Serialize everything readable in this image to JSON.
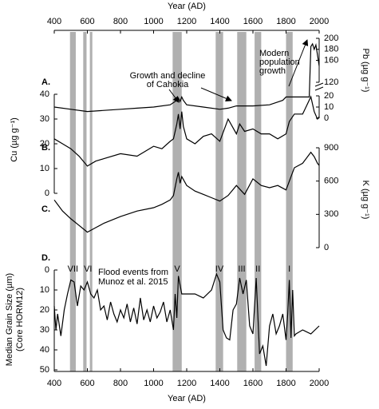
{
  "chart_data": {
    "type": "line",
    "x_label_top": "Year (AD)",
    "x_label_bottom": "Year (AD)",
    "xlim": [
      400,
      2000
    ],
    "xticks": [
      400,
      600,
      800,
      1000,
      1200,
      1400,
      1600,
      1800,
      2000
    ],
    "band_color": "#b0b0b0",
    "flood_events": [
      {
        "label": "VII",
        "bands": [
          [
            495,
            530
          ]
        ]
      },
      {
        "label": "VI",
        "bands": [
          [
            575,
            595
          ],
          [
            615,
            630
          ]
        ]
      },
      {
        "label": "V",
        "bands": [
          [
            1115,
            1170
          ]
        ]
      },
      {
        "label": "IV",
        "bands": [
          [
            1375,
            1420
          ]
        ]
      },
      {
        "label": "III",
        "bands": [
          [
            1505,
            1560
          ]
        ]
      },
      {
        "label": "II",
        "bands": [
          [
            1610,
            1650
          ]
        ]
      },
      {
        "label": "I",
        "bands": [
          [
            1800,
            1840
          ]
        ]
      }
    ],
    "annotations": {
      "cahokia": [
        "Growth and decline",
        "of Cahokia"
      ],
      "population": [
        "Modern",
        "population",
        "growth"
      ],
      "flood": [
        "Flood events from",
        "Munoz et al. 2015"
      ]
    },
    "panels": [
      {
        "label": "A.",
        "axis_label": "Pb (µg g⁻¹)",
        "side": "right",
        "color": "#000000",
        "segments": [
          {
            "ylim": [
              0,
              20
            ],
            "yticks": [
              0,
              10,
              20
            ]
          },
          {
            "ylim": [
              120,
              200
            ],
            "yticks": [
              120,
              160,
              180,
              200
            ]
          }
        ],
        "x": [
          400,
          500,
          600,
          700,
          800,
          900,
          1000,
          1100,
          1140,
          1150,
          1160,
          1170,
          1180,
          1200,
          1300,
          1400,
          1450,
          1500,
          1600,
          1700,
          1780,
          1800,
          1940,
          1950,
          1960,
          1970,
          1980,
          1990,
          2000
        ],
        "values": [
          10,
          8,
          6,
          7,
          8,
          9,
          10,
          12,
          16,
          18,
          15,
          19,
          16,
          12,
          10,
          8,
          9,
          11,
          11,
          12,
          16,
          19,
          19,
          185,
          190,
          180,
          188,
          170,
          150
        ]
      },
      {
        "label": "B.",
        "axis_label": "Cu (µg g⁻¹)",
        "side": "left",
        "color": "#000000",
        "segments": [
          {
            "ylim": [
              0,
              40
            ],
            "yticks": [
              0,
              10,
              20,
              30,
              40
            ]
          }
        ],
        "x": [
          400,
          450,
          500,
          550,
          600,
          650,
          700,
          800,
          900,
          1000,
          1050,
          1100,
          1120,
          1140,
          1150,
          1160,
          1170,
          1180,
          1200,
          1250,
          1300,
          1350,
          1400,
          1450,
          1500,
          1520,
          1550,
          1600,
          1650,
          1700,
          1750,
          1800,
          1820,
          1850,
          1900,
          1950,
          1970,
          1990,
          2000
        ],
        "values": [
          22,
          20,
          18,
          15,
          11,
          13,
          14,
          16,
          15,
          19,
          18,
          21,
          22,
          28,
          32,
          26,
          33,
          27,
          22,
          20,
          23,
          24,
          21,
          30,
          24,
          28,
          25,
          26,
          24,
          24,
          22,
          24,
          29,
          32,
          32,
          39,
          33,
          30,
          31
        ]
      },
      {
        "label": "C.",
        "axis_label": "K (µg g⁻¹)",
        "side": "right",
        "color": "#000000",
        "segments": [
          {
            "ylim": [
              0,
              900
            ],
            "yticks": [
              0,
              300,
              600,
              900
            ]
          }
        ],
        "x": [
          400,
          450,
          500,
          550,
          600,
          650,
          700,
          800,
          900,
          1000,
          1050,
          1100,
          1120,
          1140,
          1150,
          1160,
          1170,
          1200,
          1250,
          1300,
          1350,
          1400,
          1450,
          1500,
          1550,
          1600,
          1650,
          1700,
          1750,
          1800,
          1850,
          1900,
          1950,
          1970,
          1990,
          2000
        ],
        "values": [
          430,
          330,
          260,
          200,
          140,
          180,
          220,
          280,
          330,
          360,
          390,
          430,
          470,
          620,
          680,
          580,
          640,
          560,
          510,
          480,
          450,
          420,
          470,
          560,
          480,
          620,
          560,
          540,
          560,
          520,
          720,
          760,
          860,
          820,
          760,
          740
        ]
      },
      {
        "label": "D.",
        "axis_label": [
          "Median Grain Size (µm)",
          "(Core HORM12)"
        ],
        "side": "left",
        "inverted": true,
        "color": "#000000",
        "segments": [
          {
            "ylim": [
              0,
              50
            ],
            "yticks": [
              0,
              10,
              20,
              30,
              40,
              50
            ]
          }
        ],
        "x": [
          400,
          410,
          420,
          440,
          460,
          480,
          500,
          520,
          540,
          560,
          580,
          600,
          620,
          640,
          660,
          680,
          700,
          720,
          740,
          760,
          780,
          800,
          820,
          840,
          860,
          880,
          900,
          920,
          940,
          960,
          980,
          1000,
          1020,
          1040,
          1060,
          1080,
          1100,
          1120,
          1130,
          1140,
          1150,
          1170,
          1200,
          1250,
          1300,
          1350,
          1380,
          1400,
          1420,
          1440,
          1460,
          1480,
          1500,
          1520,
          1540,
          1560,
          1580,
          1600,
          1620,
          1640,
          1660,
          1680,
          1700,
          1720,
          1740,
          1760,
          1780,
          1800,
          1810,
          1820,
          1830,
          1840,
          1850,
          1860,
          1900,
          1950,
          2000
        ],
        "values": [
          18,
          30,
          22,
          33,
          20,
          12,
          5,
          6,
          18,
          8,
          10,
          6,
          12,
          14,
          10,
          20,
          18,
          25,
          16,
          22,
          26,
          20,
          24,
          17,
          26,
          19,
          27,
          14,
          25,
          20,
          26,
          18,
          24,
          21,
          16,
          26,
          20,
          30,
          12,
          24,
          3,
          12,
          12,
          12,
          14,
          10,
          2,
          6,
          30,
          34,
          35,
          20,
          17,
          4,
          12,
          5,
          28,
          32,
          4,
          42,
          38,
          48,
          28,
          22,
          32,
          28,
          22,
          35,
          22,
          5,
          34,
          10,
          33,
          32,
          30,
          32,
          28
        ]
      }
    ]
  }
}
